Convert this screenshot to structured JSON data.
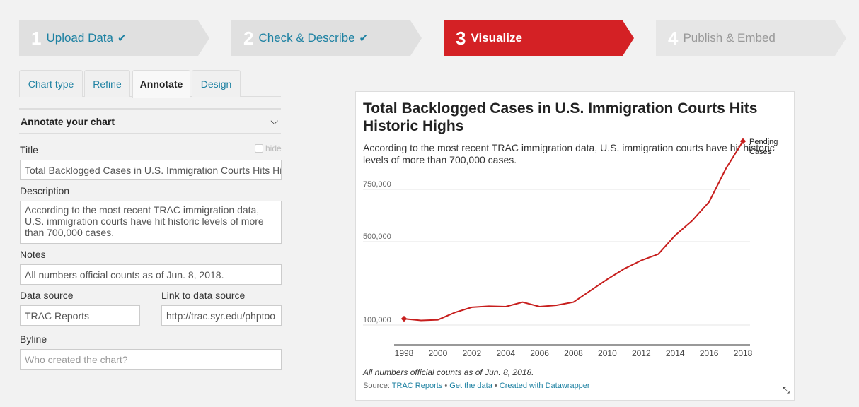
{
  "steps": [
    {
      "num": "1",
      "label": "Upload Data",
      "state": "done"
    },
    {
      "num": "2",
      "label": "Check & Describe",
      "state": "done"
    },
    {
      "num": "3",
      "label": "Visualize",
      "state": "active"
    },
    {
      "num": "4",
      "label": "Publish & Embed",
      "state": "todo"
    }
  ],
  "tabs": [
    "Chart type",
    "Refine",
    "Annotate",
    "Design"
  ],
  "annotate": {
    "heading": "Annotate your chart",
    "title_label": "Title",
    "hide_label": "hide",
    "title_value": "Total Backlogged Cases in U.S. Immigration Courts Hits Hi",
    "description_label": "Description",
    "description_value": "According to the most recent TRAC immigration data, U.S. immigration courts have hit historic levels of more than 700,000 cases.",
    "notes_label": "Notes",
    "notes_value": "All numbers official counts as of Jun. 8, 2018.",
    "source_label": "Data source",
    "source_value": "TRAC Reports",
    "link_label": "Link to data source",
    "link_value": "http://trac.syr.edu/phptoo",
    "byline_label": "Byline",
    "byline_placeholder": "Who created the chart?"
  },
  "preview": {
    "title": "Total Backlogged Cases in U.S. Immigration Courts Hits Historic Highs",
    "description": "According to the most recent TRAC immigration data, U.S. immigration courts have hit historic levels of more than 700,000 cases.",
    "notes": "All numbers official counts as of Jun. 8, 2018.",
    "source_prefix": "Source: ",
    "source_link": "TRAC Reports",
    "sep": " • ",
    "get_data": "Get the data",
    "created_with": "Created with Datawrapper"
  },
  "chart_data": {
    "type": "line",
    "title": "Total Backlogged Cases in U.S. Immigration Courts Hits Historic Highs",
    "xlabel": "",
    "ylabel": "",
    "x": [
      1998,
      1999,
      2000,
      2001,
      2002,
      2003,
      2004,
      2005,
      2006,
      2007,
      2008,
      2009,
      2010,
      2011,
      2012,
      2013,
      2014,
      2015,
      2016,
      2017,
      2018
    ],
    "series": [
      {
        "name": "Pending Cases",
        "color": "#c71e1d",
        "values": [
          130000,
          122000,
          125000,
          160000,
          185000,
          190000,
          188000,
          210000,
          188000,
          195000,
          210000,
          265000,
          320000,
          370000,
          410000,
          440000,
          530000,
          600000,
          690000,
          850000,
          980000
        ]
      }
    ],
    "yticks": [
      100000,
      500000,
      750000
    ],
    "ytick_labels": [
      "100,000",
      "500,000",
      "750,000"
    ],
    "xticks": [
      1998,
      2000,
      2002,
      2004,
      2006,
      2008,
      2010,
      2012,
      2014,
      2016,
      2018
    ],
    "xtick_labels": [
      "1998",
      "2000",
      "2002",
      "2004",
      "2006",
      "2008",
      "2010",
      "2012",
      "2014",
      "2016",
      "2018"
    ],
    "series_label_lines": [
      "Pending",
      "Cases"
    ],
    "grid": true
  }
}
